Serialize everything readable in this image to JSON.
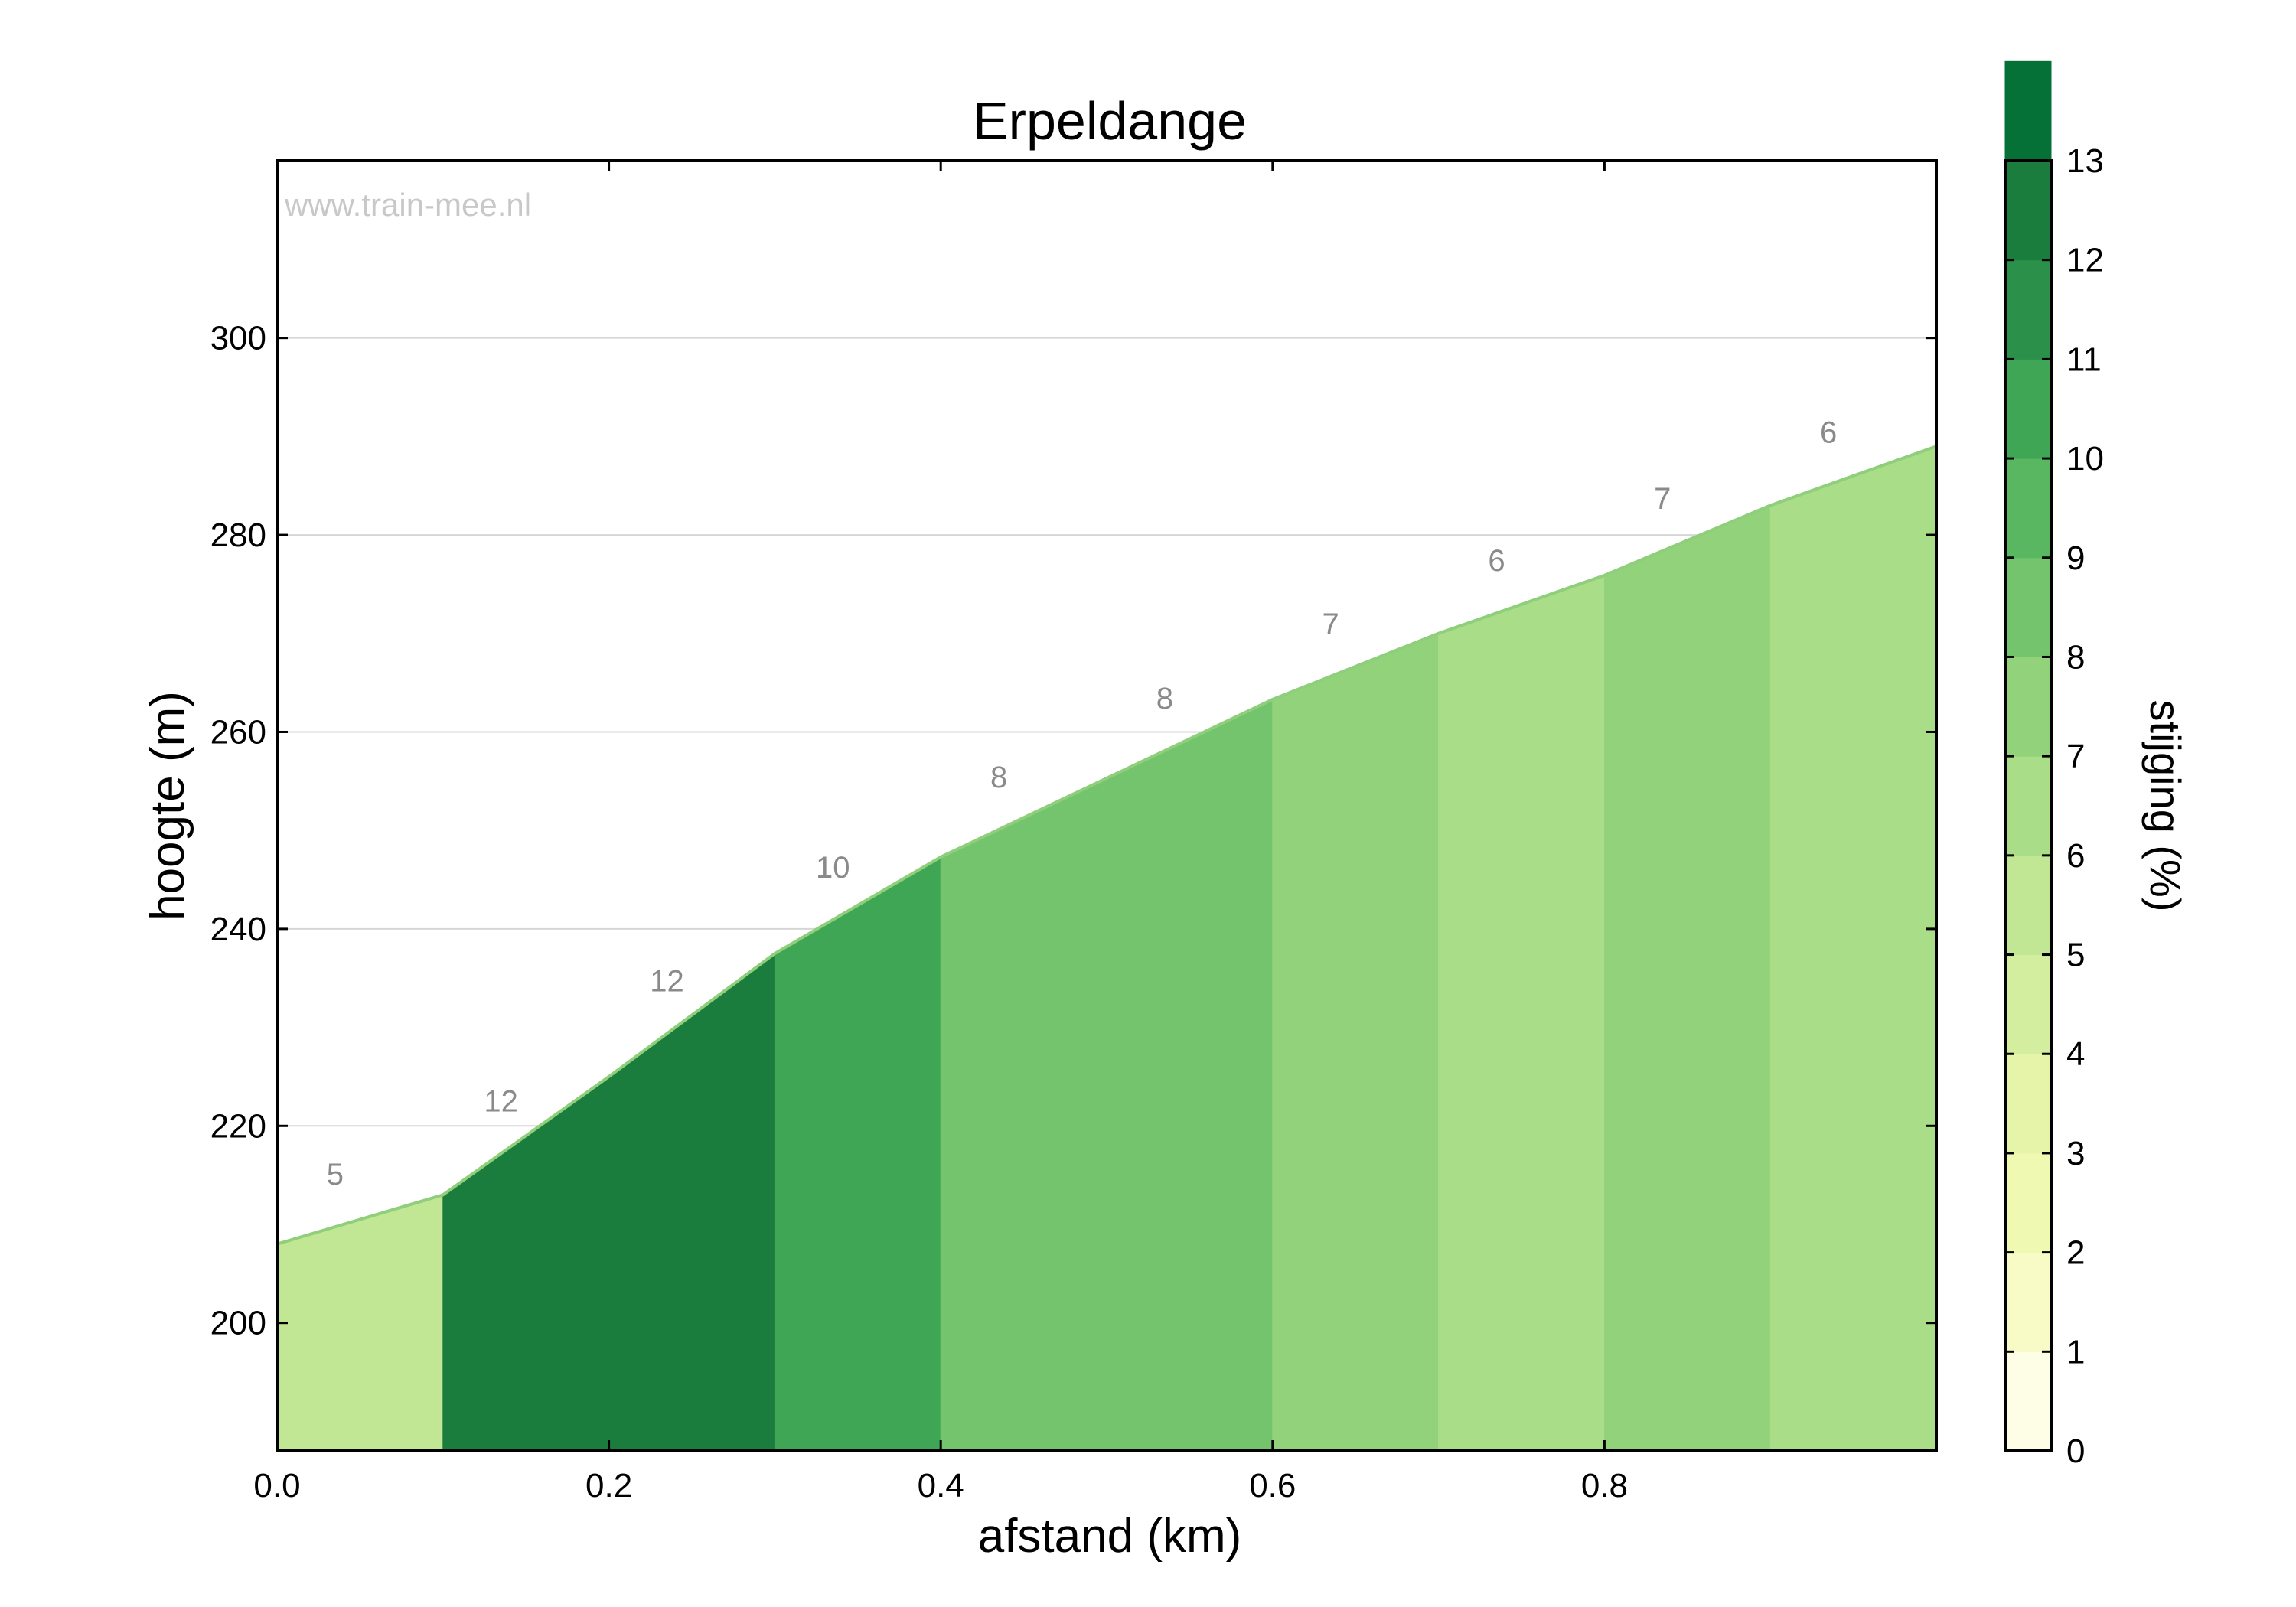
{
  "chart_data": {
    "type": "area",
    "title": "Erpeldange",
    "xlabel": "afstand (km)",
    "ylabel": "hoogte (m)",
    "watermark": "www.train-mee.nl",
    "xlim": [
      0,
      1.0
    ],
    "ylim": [
      187,
      318
    ],
    "x_ticks": [
      0.0,
      0.2,
      0.4,
      0.6,
      0.8
    ],
    "x_tick_labels": [
      "0.0",
      "0.2",
      "0.4",
      "0.6",
      "0.8"
    ],
    "y_ticks": [
      200,
      220,
      240,
      260,
      280,
      300
    ],
    "y_tick_labels": [
      "200",
      "220",
      "240",
      "260",
      "280",
      "300"
    ],
    "grid": "horizontal",
    "profile_x": [
      0.0,
      0.1,
      0.2,
      0.3,
      0.4,
      0.5,
      0.6,
      0.7,
      0.8,
      0.9,
      1.0
    ],
    "profile_y": [
      208,
      213,
      225,
      237.5,
      247.3,
      255.3,
      263.3,
      270.0,
      275.9,
      283.0,
      289.0
    ],
    "segments": [
      {
        "x0": 0.0,
        "x1": 0.1,
        "gradient": 5,
        "label": "5"
      },
      {
        "x0": 0.1,
        "x1": 0.2,
        "gradient": 12,
        "label": "12"
      },
      {
        "x0": 0.2,
        "x1": 0.3,
        "gradient": 12,
        "label": "12"
      },
      {
        "x0": 0.3,
        "x1": 0.4,
        "gradient": 10,
        "label": "10"
      },
      {
        "x0": 0.4,
        "x1": 0.5,
        "gradient": 8,
        "label": "8"
      },
      {
        "x0": 0.5,
        "x1": 0.6,
        "gradient": 8,
        "label": "8"
      },
      {
        "x0": 0.6,
        "x1": 0.7,
        "gradient": 7,
        "label": "7"
      },
      {
        "x0": 0.7,
        "x1": 0.8,
        "gradient": 6,
        "label": "6"
      },
      {
        "x0": 0.8,
        "x1": 0.9,
        "gradient": 7,
        "label": "7"
      },
      {
        "x0": 0.9,
        "x1": 1.0,
        "gradient": 6,
        "label": "6"
      }
    ],
    "colorbar": {
      "label": "stijging (%)",
      "min": 0,
      "max": 13,
      "tick_labels": [
        "0",
        "1",
        "2",
        "3",
        "4",
        "5",
        "6",
        "7",
        "8",
        "9",
        "10",
        "11",
        "12",
        "13"
      ],
      "colors": [
        "#fefde6",
        "#f8fbc6",
        "#f0f9b2",
        "#e5f4a9",
        "#d4eea0",
        "#c1e694",
        "#aadd88",
        "#91d27b",
        "#74c46e",
        "#59b761",
        "#3fa655",
        "#2b904a",
        "#1a7d3e",
        "#057136"
      ]
    }
  }
}
